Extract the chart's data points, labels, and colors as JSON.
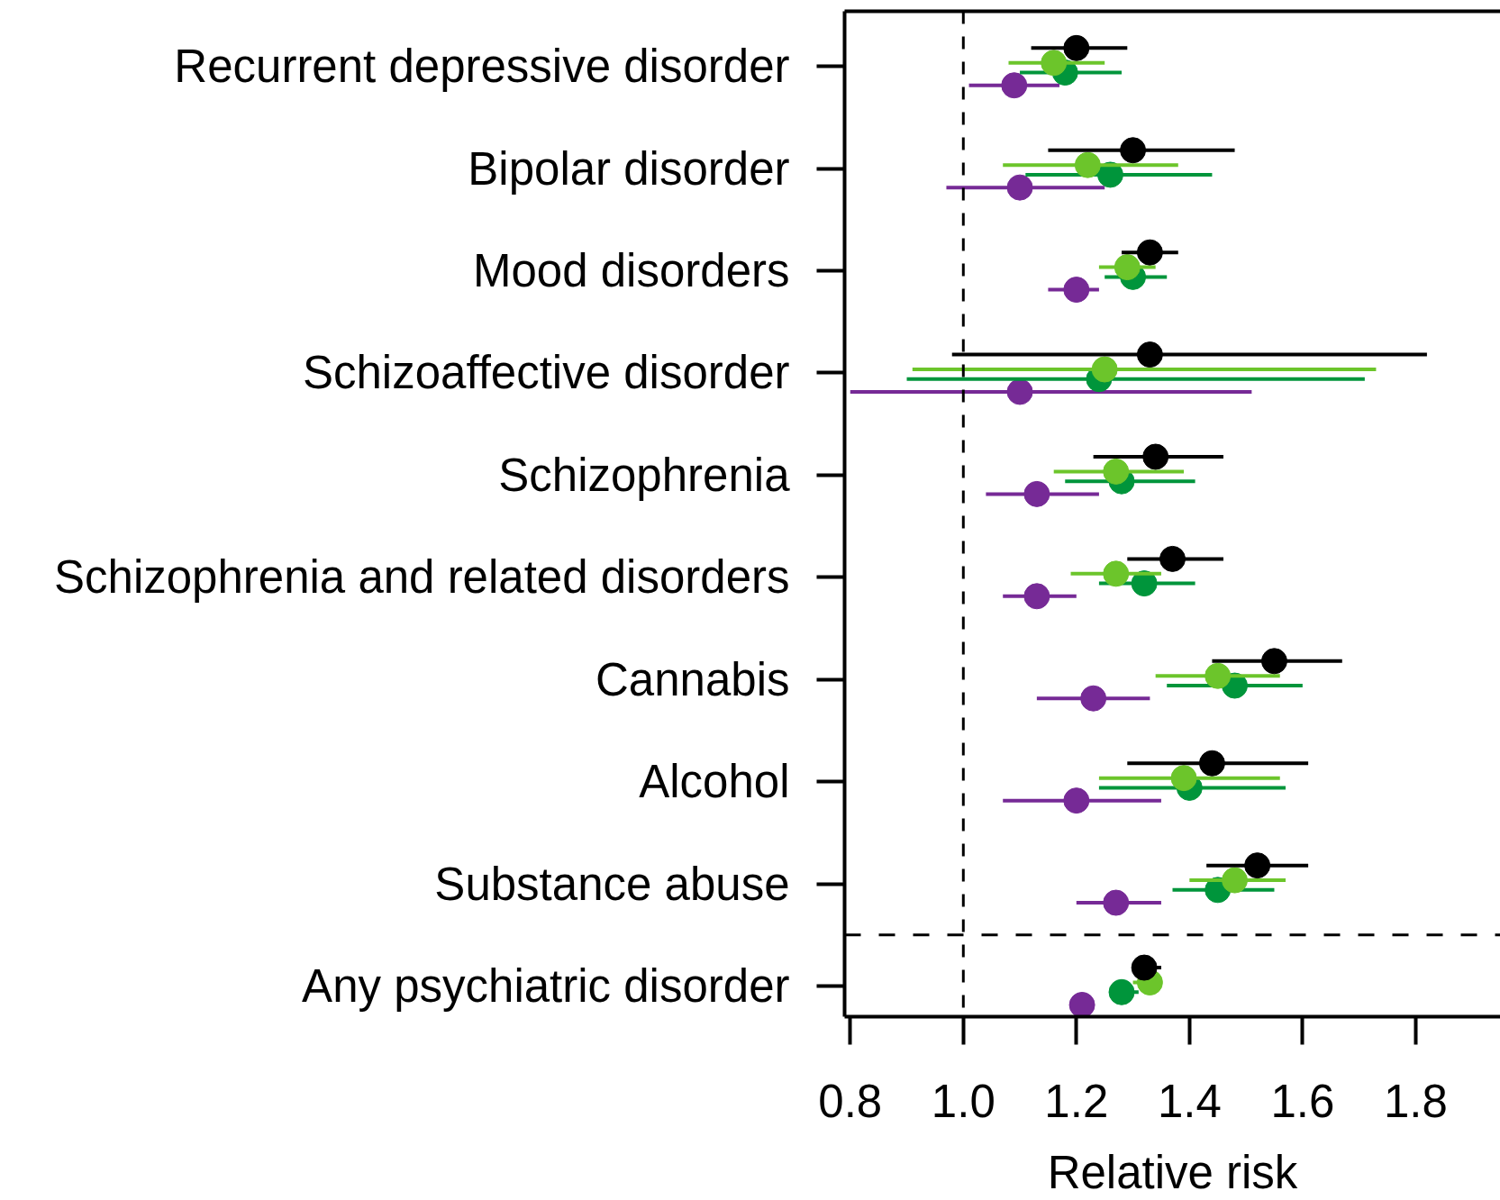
{
  "chart_data": {
    "type": "scatter",
    "orientation": "horizontal",
    "xlabel": "Relative risk",
    "categories": [
      "Recurrent depressive disorder",
      "Bipolar disorder",
      "Mood disorders",
      "Schizoaffective disorder",
      "Schizophrenia",
      "Schizophrenia and related disorders",
      "Cannabis",
      "Alcohol",
      "Substance abuse",
      "Any psychiatric disorder"
    ],
    "xlim": [
      0.79,
      1.95
    ],
    "xticks": [
      0.8,
      {
        "value": 1,
        "label": "1.0"
      },
      1.2,
      1.4,
      1.6,
      1.8
    ],
    "marker": "circle",
    "ref_lines": [
      {
        "axis": "x",
        "value": 1,
        "line_style": "dashed",
        "color": "#000000"
      }
    ],
    "series": [
      {
        "color": "#000000",
        "values": [
          1.2,
          1.3,
          1.33,
          1.33,
          1.34,
          1.37,
          1.55,
          1.44,
          1.52,
          1.32
        ],
        "errors": [
          [
            1.12,
            1.29
          ],
          [
            1.15,
            1.48
          ],
          [
            1.28,
            1.38
          ],
          [
            0.98,
            1.82
          ],
          [
            1.23,
            1.46
          ],
          [
            1.29,
            1.46
          ],
          [
            1.44,
            1.67
          ],
          [
            1.29,
            1.61
          ],
          [
            1.43,
            1.61
          ],
          [
            1.3,
            1.35
          ]
        ]
      },
      {
        "color": "#6cc52b",
        "values": [
          1.16,
          1.22,
          1.29,
          1.25,
          1.27,
          1.27,
          1.45,
          1.39,
          1.48,
          1.33
        ],
        "errors": [
          [
            1.08,
            1.25
          ],
          [
            1.07,
            1.38
          ],
          [
            1.24,
            1.34
          ],
          [
            0.91,
            1.73
          ],
          [
            1.16,
            1.39
          ],
          [
            1.19,
            1.35
          ],
          [
            1.34,
            1.56
          ],
          [
            1.24,
            1.56
          ],
          [
            1.4,
            1.57
          ],
          [
            1.3,
            1.35
          ]
        ]
      },
      {
        "color": "#00953b",
        "values": [
          1.18,
          1.26,
          1.3,
          1.24,
          1.28,
          1.32,
          1.48,
          1.4,
          1.45,
          1.28
        ],
        "errors": [
          [
            1.1,
            1.28
          ],
          [
            1.11,
            1.44
          ],
          [
            1.25,
            1.36
          ],
          [
            0.9,
            1.71
          ],
          [
            1.18,
            1.41
          ],
          [
            1.24,
            1.41
          ],
          [
            1.36,
            1.6
          ],
          [
            1.24,
            1.57
          ],
          [
            1.37,
            1.55
          ],
          [
            1.28,
            1.31
          ]
        ]
      },
      {
        "color": "#762a96",
        "values": [
          1.09,
          1.1,
          1.2,
          1.1,
          1.13,
          1.13,
          1.23,
          1.2,
          1.27,
          1.21
        ],
        "errors": [
          [
            1.01,
            1.17
          ],
          [
            0.97,
            1.25
          ],
          [
            1.15,
            1.24
          ],
          [
            0.8,
            1.51
          ],
          [
            1.04,
            1.24
          ],
          [
            1.07,
            1.2
          ],
          [
            1.13,
            1.33
          ],
          [
            1.07,
            1.35
          ],
          [
            1.2,
            1.35
          ],
          null
        ]
      }
    ]
  }
}
